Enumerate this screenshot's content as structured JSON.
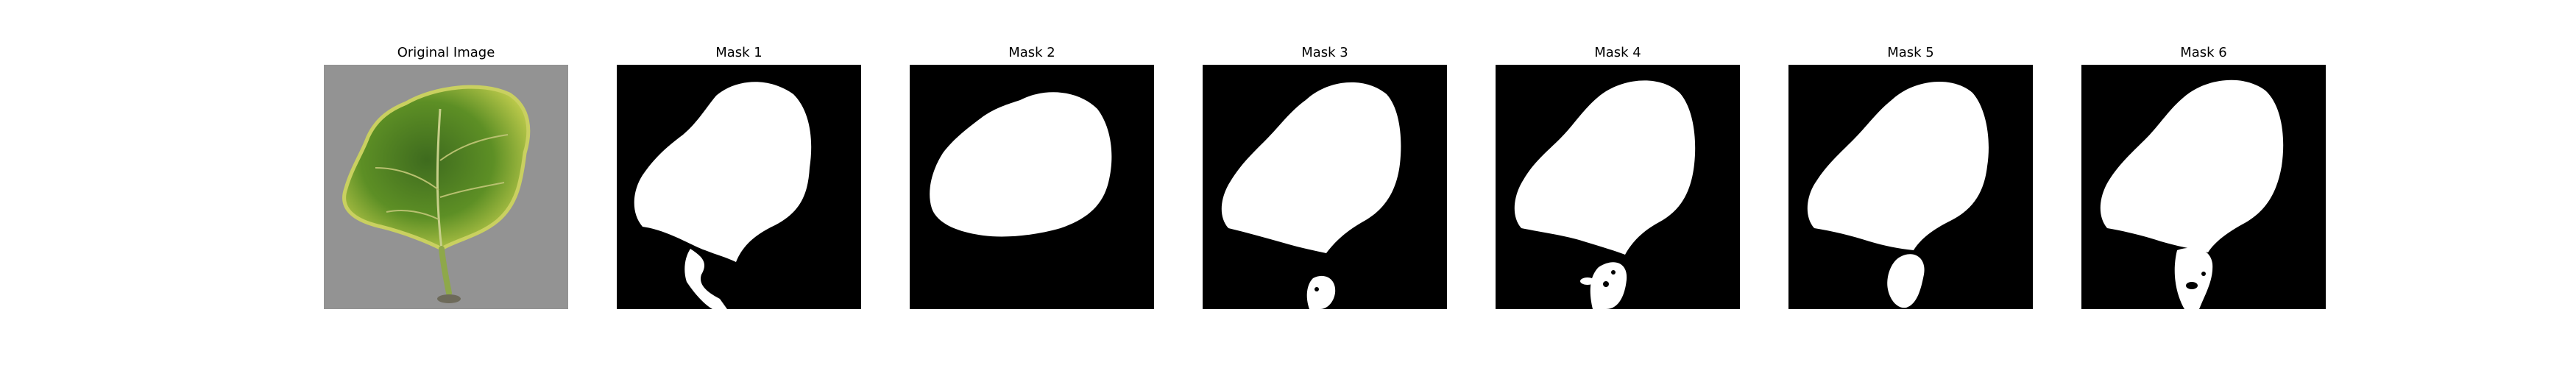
{
  "figure": {
    "panels": [
      {
        "title": "Original Image"
      },
      {
        "title": "Mask 1"
      },
      {
        "title": "Mask 2"
      },
      {
        "title": "Mask 3"
      },
      {
        "title": "Mask 4"
      },
      {
        "title": "Mask 5"
      },
      {
        "title": "Mask 6"
      }
    ]
  }
}
